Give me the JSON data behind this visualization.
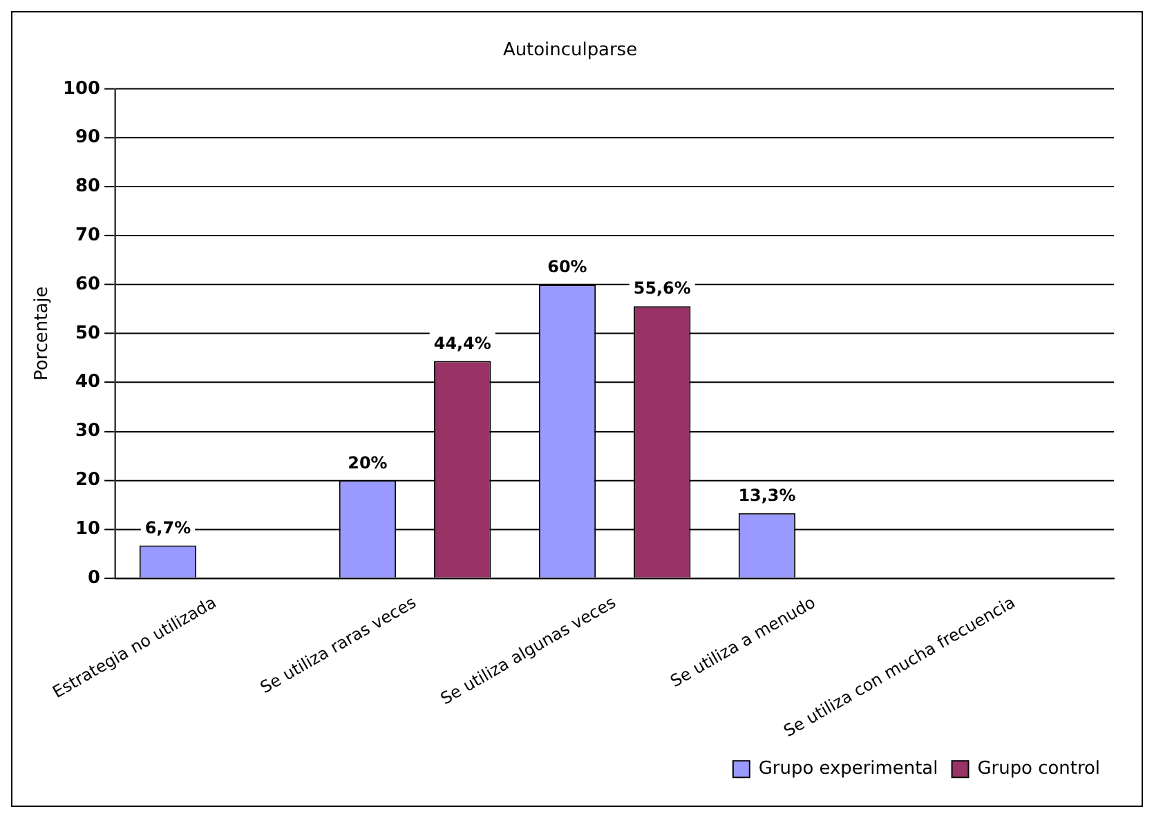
{
  "chart_data": {
    "type": "bar",
    "title": "Autoinculparse",
    "ylabel": "Porcentaje",
    "categories": [
      "Estrategia no utilizada",
      "Se utiliza raras veces",
      "Se utiliza algunas veces",
      "Se utiliza a menudo",
      "Se utiliza con mucha frecuencia"
    ],
    "series": [
      {
        "name": "Grupo experimental",
        "color": "#9999ff",
        "values": [
          6.7,
          20,
          60,
          13.3,
          0
        ],
        "value_labels": [
          "6,7%",
          "20%",
          "60%",
          "13,3%",
          null
        ]
      },
      {
        "name": "Grupo control",
        "color": "#993366",
        "values": [
          0,
          44.4,
          55.6,
          0,
          0
        ],
        "value_labels": [
          null,
          "44,4%",
          "55,6%",
          null,
          null
        ]
      }
    ],
    "ylim": [
      0,
      100
    ],
    "yticks": [
      0,
      10,
      20,
      30,
      40,
      50,
      60,
      70,
      80,
      90,
      100
    ],
    "grid": "y",
    "legend": "bottom right"
  }
}
